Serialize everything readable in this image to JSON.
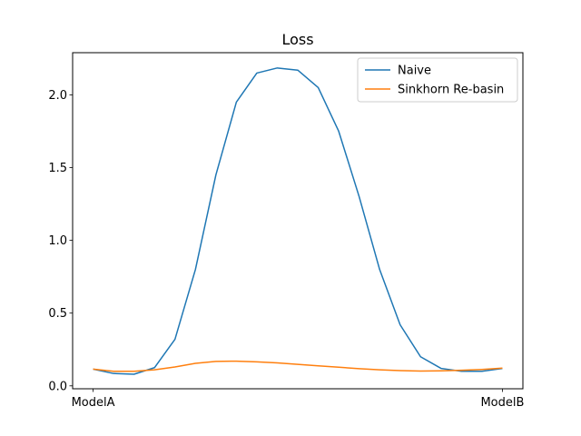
{
  "chart_data": {
    "type": "line",
    "title": "Loss",
    "xlabel": "",
    "ylabel": "",
    "x_tick_labels": [
      "ModelA",
      "ModelB"
    ],
    "x": [
      0,
      0.05,
      0.1,
      0.15,
      0.2,
      0.25,
      0.3,
      0.35,
      0.4,
      0.45,
      0.5,
      0.55,
      0.6,
      0.65,
      0.7,
      0.75,
      0.8,
      0.85,
      0.9,
      0.95,
      1.0
    ],
    "xlim": [
      -0.05,
      1.05
    ],
    "ylim": [
      -0.02,
      2.29
    ],
    "y_ticks": [
      "0.0",
      "0.5",
      "1.0",
      "1.5",
      "2.0"
    ],
    "series": [
      {
        "name": "Naive",
        "color": "#1f77b4",
        "values": [
          0.115,
          0.085,
          0.08,
          0.125,
          0.32,
          0.8,
          1.45,
          1.95,
          2.15,
          2.185,
          2.17,
          2.05,
          1.75,
          1.3,
          0.8,
          0.42,
          0.2,
          0.12,
          0.1,
          0.1,
          0.12
        ]
      },
      {
        "name": "Sinkhorn Re-basin",
        "color": "#ff7f0e",
        "values": [
          0.115,
          0.1,
          0.1,
          0.11,
          0.13,
          0.155,
          0.168,
          0.17,
          0.165,
          0.158,
          0.148,
          0.138,
          0.128,
          0.118,
          0.11,
          0.105,
          0.102,
          0.103,
          0.107,
          0.113,
          0.122
        ]
      }
    ],
    "legend_position": "top-right",
    "grid": false
  }
}
